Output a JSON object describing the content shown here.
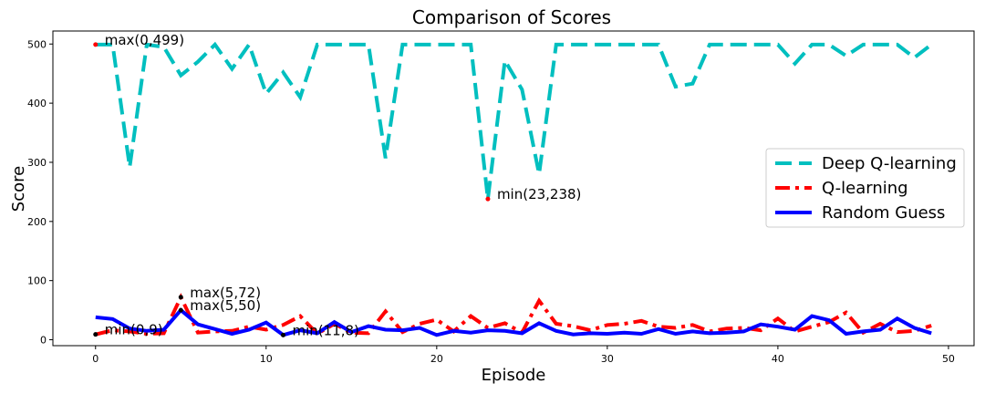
{
  "chart_data": {
    "type": "line",
    "title": "Comparison of Scores",
    "xlabel": "Episode",
    "ylabel": "Score",
    "xlim": [
      -2.5,
      51.5
    ],
    "ylim": [
      -10,
      522
    ],
    "xticks": [
      0,
      10,
      20,
      30,
      40,
      50
    ],
    "yticks": [
      0,
      100,
      200,
      300,
      400,
      500
    ],
    "grid": false,
    "legend_position": "center-right",
    "x": [
      0,
      1,
      2,
      3,
      4,
      5,
      6,
      7,
      8,
      9,
      10,
      11,
      12,
      13,
      14,
      15,
      16,
      17,
      18,
      19,
      20,
      21,
      22,
      23,
      24,
      25,
      26,
      27,
      28,
      29,
      30,
      31,
      32,
      33,
      34,
      35,
      36,
      37,
      38,
      39,
      40,
      41,
      42,
      43,
      44,
      45,
      46,
      47,
      48,
      49
    ],
    "series": [
      {
        "name": "Deep Q-learning",
        "color": "#00bfbf",
        "style": "dashed",
        "values": [
          499,
          499,
          292,
          499,
          495,
          447,
          470,
          499,
          458,
          499,
          416,
          452,
          410,
          499,
          499,
          499,
          499,
          307,
          499,
          499,
          499,
          499,
          499,
          238,
          472,
          423,
          280,
          499,
          499,
          499,
          499,
          499,
          499,
          499,
          428,
          433,
          499,
          499,
          499,
          499,
          499,
          467,
          499,
          499,
          480,
          499,
          499,
          499,
          477,
          499
        ]
      },
      {
        "name": "Q-learning",
        "color": "#ff0000",
        "style": "dashdot",
        "values": [
          9,
          16,
          14,
          10,
          11,
          72,
          12,
          14,
          15,
          22,
          17,
          25,
          40,
          10,
          27,
          12,
          11,
          48,
          13,
          27,
          34,
          14,
          40,
          20,
          28,
          12,
          66,
          27,
          23,
          16,
          25,
          27,
          32,
          22,
          20,
          25,
          14,
          19,
          20,
          16,
          36,
          14,
          22,
          30,
          46,
          12,
          27,
          13,
          15,
          24
        ]
      },
      {
        "name": "Random Guess",
        "color": "#0000ff",
        "style": "solid",
        "values": [
          38,
          35,
          19,
          15,
          17,
          50,
          26,
          18,
          10,
          17,
          29,
          8,
          16,
          11,
          30,
          13,
          23,
          17,
          16,
          20,
          8,
          15,
          12,
          16,
          15,
          11,
          28,
          15,
          9,
          11,
          10,
          12,
          10,
          18,
          10,
          14,
          11,
          12,
          14,
          26,
          22,
          17,
          40,
          33,
          10,
          14,
          17,
          36,
          20,
          11
        ]
      }
    ],
    "annotations": [
      {
        "text": "max(0,499)",
        "x": 0,
        "y": 499,
        "color": "#ff0000"
      },
      {
        "text": "min(23,238)",
        "x": 23,
        "y": 238,
        "color": "#ff0000"
      },
      {
        "text": "max(5,72)",
        "x": 5,
        "y": 72,
        "color": "#000000"
      },
      {
        "text": "min(0,9)",
        "x": 0,
        "y": 9,
        "color": "#000000"
      },
      {
        "text": "max(5,50)",
        "x": 5,
        "y": 50,
        "color": "#000000"
      },
      {
        "text": "min(11,8)",
        "x": 11,
        "y": 8,
        "color": "#000000"
      }
    ]
  }
}
